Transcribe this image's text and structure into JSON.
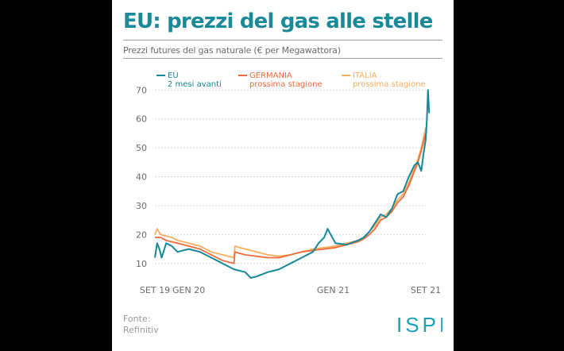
{
  "title": "EU: prezzi del gas alle stelle",
  "subtitle": "Prezzi futures del gas naturale (€ per Megawattora)",
  "footer": {
    "source_label": "Fonte:",
    "source": "Refinitiv"
  },
  "logo_text": "ISPI",
  "colors": {
    "eu": "#15889a",
    "germania": "#ee6b3a",
    "italia": "#f7ae5e",
    "title": "#1a8a99",
    "logo": "#18a0b5"
  },
  "chart_data": {
    "type": "line",
    "title": "Prezzi futures del gas naturale (€ per Megawattora)",
    "xlabel": "",
    "ylabel": "€ per Megawattora",
    "x_unit": "months since Sep 2019",
    "xlim": [
      0,
      24
    ],
    "ylim": [
      5,
      72
    ],
    "yticks": [
      10,
      20,
      30,
      40,
      50,
      60,
      70
    ],
    "xticks": [
      {
        "x": 0,
        "label": "SET 19"
      },
      {
        "x": 3,
        "label": "GEN 20"
      },
      {
        "x": 15.8,
        "label": "GEN 21"
      },
      {
        "x": 24,
        "label": "SET 21"
      }
    ],
    "legend": [
      {
        "key": "eu",
        "name": "EU",
        "detail": "2 mesi avanti"
      },
      {
        "key": "germania",
        "name": "GERMANIA",
        "detail": "prossima stagione"
      },
      {
        "key": "italia",
        "name": "ITALIA",
        "detail": "prossima stagione"
      }
    ],
    "series": [
      {
        "key": "italia",
        "name": "ITALIA",
        "x": [
          0,
          0.2,
          0.5,
          1,
          1.5,
          2,
          3,
          4,
          5,
          6,
          7,
          7.1,
          7.5,
          8,
          9,
          10,
          11,
          12,
          13,
          14,
          15,
          16,
          17,
          18,
          18.5,
          19,
          19.5,
          20,
          20.5,
          21,
          21.5,
          22,
          22.5,
          23,
          23.3,
          23.6,
          24
        ],
        "y": [
          20,
          22,
          20,
          19.5,
          19,
          18,
          17,
          16,
          14,
          13,
          12,
          16,
          15.5,
          15,
          14,
          13,
          12.5,
          13,
          14,
          15,
          15.5,
          16,
          17,
          18,
          19,
          21,
          23,
          26,
          27,
          29,
          32,
          34,
          38,
          43,
          46,
          50,
          57
        ]
      },
      {
        "key": "germania",
        "name": "GERMANIA",
        "x": [
          0,
          0.5,
          1,
          2,
          3,
          4,
          5,
          6,
          7,
          7.1,
          7.5,
          8,
          9,
          10,
          11,
          12,
          13,
          14,
          15,
          16,
          17,
          18,
          18.5,
          19,
          19.5,
          20,
          20.5,
          21,
          21.5,
          22,
          22.5,
          23,
          23.3,
          23.6,
          24
        ],
        "y": [
          19,
          19,
          18,
          17,
          16,
          15,
          13,
          11,
          10,
          14,
          13.5,
          13,
          12.5,
          12,
          12,
          13,
          14,
          14.5,
          15,
          15.5,
          16.5,
          17.5,
          18.5,
          20,
          22,
          25,
          26,
          28,
          31,
          33,
          37,
          42,
          45,
          49,
          55
        ]
      },
      {
        "key": "eu",
        "name": "EU",
        "x": [
          0,
          0.2,
          0.4,
          0.6,
          1,
          1.5,
          2,
          3,
          4,
          5,
          6,
          7,
          8,
          8.5,
          9,
          10,
          11,
          12,
          13,
          14,
          14.5,
          15,
          15.3,
          16,
          17,
          18,
          18.5,
          19,
          19.5,
          20,
          20.5,
          21,
          21.5,
          22,
          22.5,
          23,
          23.3,
          23.6,
          23.8,
          24,
          24.1,
          24.2,
          24.3
        ],
        "y": [
          12,
          17,
          15,
          12,
          17,
          16,
          14,
          15,
          14,
          12,
          10,
          8,
          7,
          5,
          5.5,
          7,
          8,
          10,
          12,
          14,
          17,
          19,
          22,
          17,
          16.5,
          18,
          19,
          21,
          24,
          27,
          26,
          29,
          34,
          35,
          40,
          44,
          45,
          42,
          48,
          53,
          60,
          70,
          62
        ]
      }
    ]
  }
}
